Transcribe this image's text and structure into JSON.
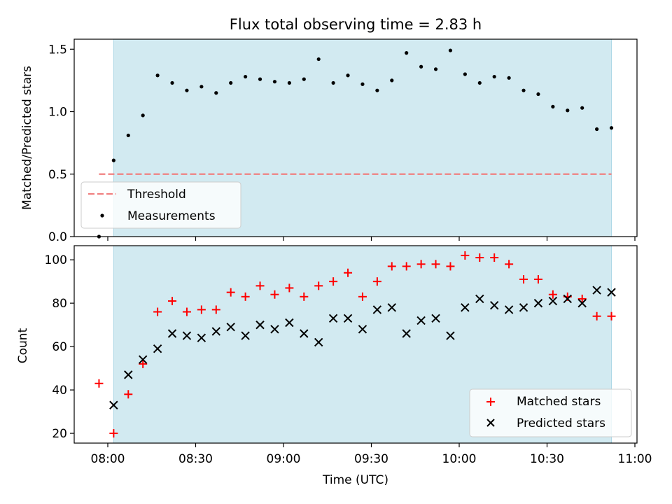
{
  "chart_data": [
    {
      "type": "scatter",
      "title": "Flux total observing time = 2.83 h",
      "xlabel": "",
      "ylabel": "Matched/Predicted stars",
      "ylim": [
        0,
        1.58
      ],
      "yticks": [
        0.0,
        0.5,
        1.0,
        1.5
      ],
      "ytick_labels": [
        "0.0",
        "0.5",
        "1.0",
        "1.5"
      ],
      "legend_position": "lower-left",
      "shaded_span": {
        "start": "08:02",
        "end": "10:52",
        "color": "#add8e6"
      },
      "threshold": {
        "name": "Threshold",
        "value": 0.5,
        "color": "#f08080",
        "style": "dashed",
        "start": "07:57",
        "end": "10:52"
      },
      "series": [
        {
          "name": "Measurements",
          "color": "#000000",
          "marker": "dot",
          "points": [
            {
              "time": "07:57",
              "value": 0.0
            },
            {
              "time": "08:02",
              "value": 0.61
            },
            {
              "time": "08:07",
              "value": 0.81
            },
            {
              "time": "08:12",
              "value": 0.97
            },
            {
              "time": "08:17",
              "value": 1.29
            },
            {
              "time": "08:22",
              "value": 1.23
            },
            {
              "time": "08:27",
              "value": 1.17
            },
            {
              "time": "08:32",
              "value": 1.2
            },
            {
              "time": "08:37",
              "value": 1.15
            },
            {
              "time": "08:42",
              "value": 1.23
            },
            {
              "time": "08:47",
              "value": 1.28
            },
            {
              "time": "08:52",
              "value": 1.26
            },
            {
              "time": "08:57",
              "value": 1.24
            },
            {
              "time": "09:02",
              "value": 1.23
            },
            {
              "time": "09:07",
              "value": 1.26
            },
            {
              "time": "09:12",
              "value": 1.42
            },
            {
              "time": "09:17",
              "value": 1.23
            },
            {
              "time": "09:22",
              "value": 1.29
            },
            {
              "time": "09:27",
              "value": 1.22
            },
            {
              "time": "09:32",
              "value": 1.17
            },
            {
              "time": "09:37",
              "value": 1.25
            },
            {
              "time": "09:42",
              "value": 1.47
            },
            {
              "time": "09:47",
              "value": 1.36
            },
            {
              "time": "09:52",
              "value": 1.34
            },
            {
              "time": "09:57",
              "value": 1.49
            },
            {
              "time": "10:02",
              "value": 1.3
            },
            {
              "time": "10:07",
              "value": 1.23
            },
            {
              "time": "10:12",
              "value": 1.28
            },
            {
              "time": "10:17",
              "value": 1.27
            },
            {
              "time": "10:22",
              "value": 1.17
            },
            {
              "time": "10:27",
              "value": 1.14
            },
            {
              "time": "10:32",
              "value": 1.04
            },
            {
              "time": "10:37",
              "value": 1.01
            },
            {
              "time": "10:42",
              "value": 1.03
            },
            {
              "time": "10:47",
              "value": 0.86
            },
            {
              "time": "10:52",
              "value": 0.87
            }
          ]
        }
      ]
    },
    {
      "type": "scatter",
      "title": "",
      "xlabel": "Time (UTC)",
      "ylabel": "Count",
      "ylim": [
        15.5,
        106.5
      ],
      "yticks": [
        20,
        40,
        60,
        80,
        100
      ],
      "ytick_labels": [
        "20",
        "40",
        "60",
        "80",
        "100"
      ],
      "xticks": [
        "08:00",
        "08:30",
        "09:00",
        "09:30",
        "10:00",
        "10:30",
        "11:00"
      ],
      "xtick_labels": [
        "08:00",
        "08:30",
        "09:00",
        "09:30",
        "10:00",
        "10:30",
        "11:00"
      ],
      "legend_position": "lower-right",
      "shaded_span": {
        "start": "08:02",
        "end": "10:52",
        "color": "#add8e6"
      },
      "series": [
        {
          "name": "Matched stars",
          "color": "#ff0000",
          "marker": "plus",
          "points": [
            {
              "time": "07:57",
              "value": 43
            },
            {
              "time": "08:02",
              "value": 20
            },
            {
              "time": "08:07",
              "value": 38
            },
            {
              "time": "08:12",
              "value": 52
            },
            {
              "time": "08:17",
              "value": 76
            },
            {
              "time": "08:22",
              "value": 81
            },
            {
              "time": "08:27",
              "value": 76
            },
            {
              "time": "08:32",
              "value": 77
            },
            {
              "time": "08:37",
              "value": 77
            },
            {
              "time": "08:42",
              "value": 85
            },
            {
              "time": "08:47",
              "value": 83
            },
            {
              "time": "08:52",
              "value": 88
            },
            {
              "time": "08:57",
              "value": 84
            },
            {
              "time": "09:02",
              "value": 87
            },
            {
              "time": "09:07",
              "value": 83
            },
            {
              "time": "09:12",
              "value": 88
            },
            {
              "time": "09:17",
              "value": 90
            },
            {
              "time": "09:22",
              "value": 94
            },
            {
              "time": "09:27",
              "value": 83
            },
            {
              "time": "09:32",
              "value": 90
            },
            {
              "time": "09:37",
              "value": 97
            },
            {
              "time": "09:42",
              "value": 97
            },
            {
              "time": "09:47",
              "value": 98
            },
            {
              "time": "09:52",
              "value": 98
            },
            {
              "time": "09:57",
              "value": 97
            },
            {
              "time": "10:02",
              "value": 102
            },
            {
              "time": "10:07",
              "value": 101
            },
            {
              "time": "10:12",
              "value": 101
            },
            {
              "time": "10:17",
              "value": 98
            },
            {
              "time": "10:22",
              "value": 91
            },
            {
              "time": "10:27",
              "value": 91
            },
            {
              "time": "10:32",
              "value": 84
            },
            {
              "time": "10:37",
              "value": 83
            },
            {
              "time": "10:42",
              "value": 82
            },
            {
              "time": "10:47",
              "value": 74
            },
            {
              "time": "10:52",
              "value": 74
            }
          ]
        },
        {
          "name": "Predicted stars",
          "color": "#000000",
          "marker": "x",
          "points": [
            {
              "time": "08:02",
              "value": 33
            },
            {
              "time": "08:07",
              "value": 47
            },
            {
              "time": "08:12",
              "value": 54
            },
            {
              "time": "08:17",
              "value": 59
            },
            {
              "time": "08:22",
              "value": 66
            },
            {
              "time": "08:27",
              "value": 65
            },
            {
              "time": "08:32",
              "value": 64
            },
            {
              "time": "08:37",
              "value": 67
            },
            {
              "time": "08:42",
              "value": 69
            },
            {
              "time": "08:47",
              "value": 65
            },
            {
              "time": "08:52",
              "value": 70
            },
            {
              "time": "08:57",
              "value": 68
            },
            {
              "time": "09:02",
              "value": 71
            },
            {
              "time": "09:07",
              "value": 66
            },
            {
              "time": "09:12",
              "value": 62
            },
            {
              "time": "09:17",
              "value": 73
            },
            {
              "time": "09:22",
              "value": 73
            },
            {
              "time": "09:27",
              "value": 68
            },
            {
              "time": "09:32",
              "value": 77
            },
            {
              "time": "09:37",
              "value": 78
            },
            {
              "time": "09:42",
              "value": 66
            },
            {
              "time": "09:47",
              "value": 72
            },
            {
              "time": "09:52",
              "value": 73
            },
            {
              "time": "09:57",
              "value": 65
            },
            {
              "time": "10:02",
              "value": 78
            },
            {
              "time": "10:07",
              "value": 82
            },
            {
              "time": "10:12",
              "value": 79
            },
            {
              "time": "10:17",
              "value": 77
            },
            {
              "time": "10:22",
              "value": 78
            },
            {
              "time": "10:27",
              "value": 80
            },
            {
              "time": "10:32",
              "value": 81
            },
            {
              "time": "10:37",
              "value": 82
            },
            {
              "time": "10:42",
              "value": 80
            },
            {
              "time": "10:47",
              "value": 86
            },
            {
              "time": "10:52",
              "value": 85
            }
          ]
        }
      ]
    }
  ]
}
